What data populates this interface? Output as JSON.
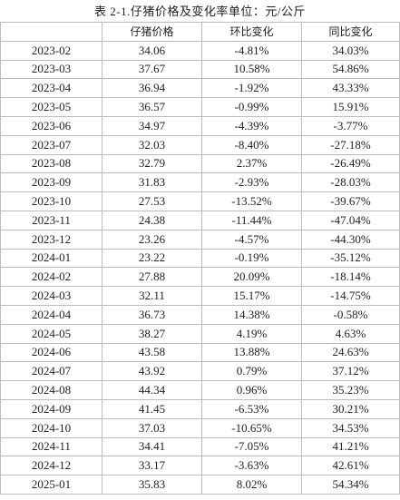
{
  "title": "表 2-1.仔猪价格及变化率单位：元/公斤",
  "table": {
    "header": [
      "仔猪价格",
      "环比变化",
      "同比变化"
    ],
    "rows": [
      [
        "2023-02",
        "34.06",
        "-4.81%",
        "34.03%"
      ],
      [
        "2023-03",
        "37.67",
        "10.58%",
        "54.86%"
      ],
      [
        "2023-04",
        "36.94",
        "-1.92%",
        "43.33%"
      ],
      [
        "2023-05",
        "36.57",
        "-0.99%",
        "15.91%"
      ],
      [
        "2023-06",
        "34.97",
        "-4.39%",
        "-3.77%"
      ],
      [
        "2023-07",
        "32.03",
        "-8.40%",
        "-27.18%"
      ],
      [
        "2023-08",
        "32.79",
        "2.37%",
        "-26.49%"
      ],
      [
        "2023-09",
        "31.83",
        "-2.93%",
        "-28.03%"
      ],
      [
        "2023-10",
        "27.53",
        "-13.52%",
        "-39.67%"
      ],
      [
        "2023-11",
        "24.38",
        "-11.44%",
        "-47.04%"
      ],
      [
        "2023-12",
        "23.26",
        "-4.57%",
        "-44.30%"
      ],
      [
        "2024-01",
        "23.22",
        "-0.19%",
        "-35.12%"
      ],
      [
        "2024-02",
        "27.88",
        "20.09%",
        "-18.14%"
      ],
      [
        "2024-03",
        "32.11",
        "15.17%",
        "-14.75%"
      ],
      [
        "2024-04",
        "36.73",
        "14.38%",
        "-0.58%"
      ],
      [
        "2024-05",
        "38.27",
        "4.19%",
        "4.63%"
      ],
      [
        "2024-06",
        "43.58",
        "13.88%",
        "24.63%"
      ],
      [
        "2024-07",
        "43.92",
        "0.79%",
        "37.12%"
      ],
      [
        "2024-08",
        "44.34",
        "0.96%",
        "35.23%"
      ],
      [
        "2024-09",
        "41.45",
        "-6.53%",
        "30.21%"
      ],
      [
        "2024-10",
        "37.03",
        "-10.65%",
        "34.53%"
      ],
      [
        "2024-11",
        "34.41",
        "-7.05%",
        "41.21%"
      ],
      [
        "2024-12",
        "33.17",
        "-3.63%",
        "42.61%"
      ],
      [
        "2025-01",
        "35.83",
        "8.02%",
        "54.34%"
      ]
    ]
  }
}
